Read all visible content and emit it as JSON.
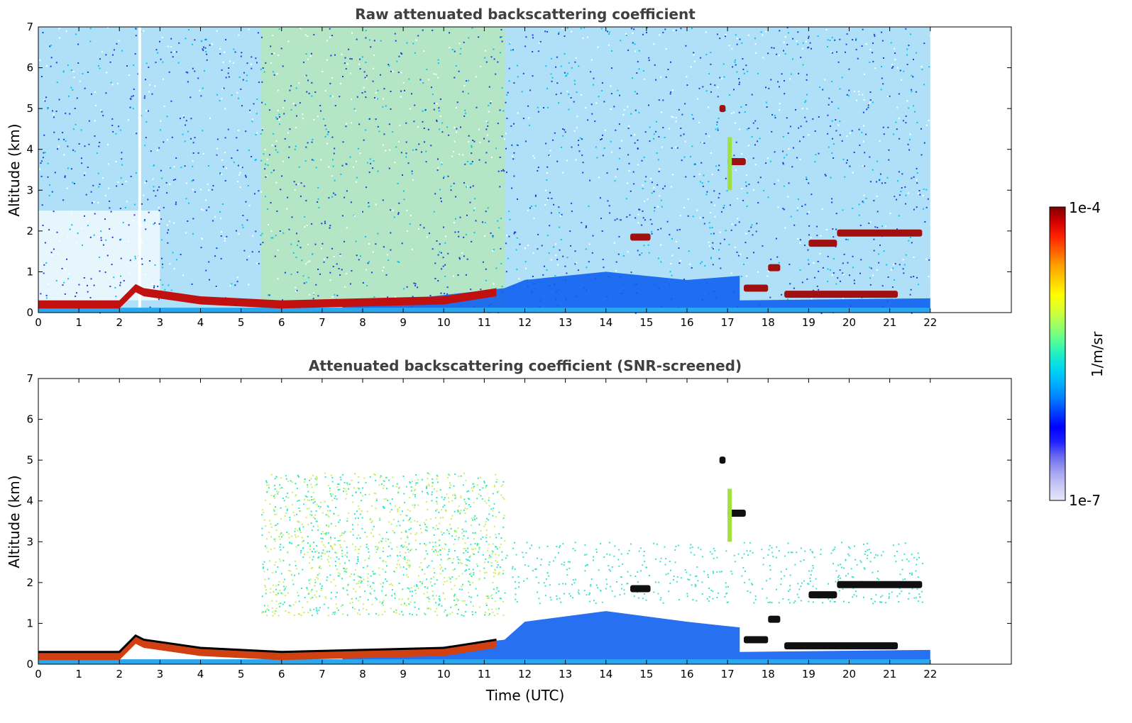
{
  "chart_data": [
    {
      "type": "heatmap",
      "title": "Raw attenuated backscattering coefficient",
      "xlabel": "",
      "ylabel": "Altitude (km)",
      "xlim": [
        0,
        24
      ],
      "ylim": [
        0,
        7
      ],
      "xticks": [
        "0",
        "1",
        "2",
        "3",
        "4",
        "5",
        "6",
        "7",
        "8",
        "9",
        "10",
        "11",
        "12",
        "13",
        "14",
        "15",
        "16",
        "17",
        "18",
        "19",
        "20",
        "21",
        "22"
      ],
      "yticks": [
        "0",
        "1",
        "2",
        "3",
        "4",
        "5",
        "6",
        "7"
      ],
      "data_end_hour": 22,
      "boundary_layer_top_km": [
        [
          0,
          0.3
        ],
        [
          1,
          0.3
        ],
        [
          2,
          0.3
        ],
        [
          2.4,
          0.7
        ],
        [
          2.6,
          0.6
        ],
        [
          4,
          0.4
        ],
        [
          6,
          0.3
        ],
        [
          8,
          0.35
        ],
        [
          10,
          0.4
        ],
        [
          11.3,
          0.6
        ]
      ],
      "cloud_layers": [
        {
          "start": 16.8,
          "end": 16.95,
          "alt_km": 5.0
        },
        {
          "start": 17.0,
          "end": 17.45,
          "alt_km": 3.7
        },
        {
          "start": 14.6,
          "end": 15.1,
          "alt_km": 1.85
        },
        {
          "start": 17.4,
          "end": 18.0,
          "alt_km": 0.6
        },
        {
          "start": 18.0,
          "end": 18.3,
          "alt_km": 1.1
        },
        {
          "start": 18.4,
          "end": 21.2,
          "alt_km": 0.45
        },
        {
          "start": 19.0,
          "end": 19.7,
          "alt_km": 1.7
        },
        {
          "start": 19.7,
          "end": 21.8,
          "alt_km": 1.95
        }
      ]
    },
    {
      "type": "heatmap",
      "title": "Attenuated backscattering coefficient (SNR-screened)",
      "xlabel": "Time (UTC)",
      "ylabel": "Altitude (km)",
      "xlim": [
        0,
        24
      ],
      "ylim": [
        0,
        7
      ],
      "xticks": [
        "0",
        "1",
        "2",
        "3",
        "4",
        "5",
        "6",
        "7",
        "8",
        "9",
        "10",
        "11",
        "12",
        "13",
        "14",
        "15",
        "16",
        "17",
        "18",
        "19",
        "20",
        "21",
        "22"
      ],
      "yticks": [
        "0",
        "1",
        "2",
        "3",
        "4",
        "5",
        "6",
        "7"
      ],
      "data_end_hour": 22
    }
  ],
  "colorbar": {
    "max_label": "1e-4",
    "min_label": "1e-7",
    "unit_label": "1/m/sr",
    "colors": [
      "#e8e8fa",
      "#c8c8f5",
      "#a0a0f0",
      "#6a6af0",
      "#2020ff",
      "#0000ff",
      "#0040ff",
      "#0080ff",
      "#00b0ff",
      "#00d8f0",
      "#20f0c0",
      "#60ff90",
      "#a0ff60",
      "#d8ff30",
      "#ffff00",
      "#ffd000",
      "#ffa000",
      "#ff6000",
      "#ff2000",
      "#d00000",
      "#800000"
    ]
  }
}
